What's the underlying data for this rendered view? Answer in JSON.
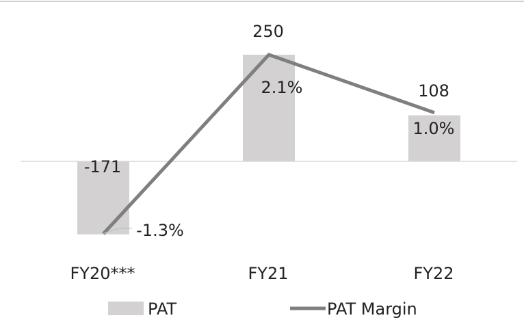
{
  "chart_data": {
    "type": "bar",
    "categories": [
      "FY20***",
      "FY21",
      "FY22"
    ],
    "series": [
      {
        "name": "PAT",
        "kind": "bar",
        "values": [
          -171,
          250,
          108
        ],
        "labels": [
          "-171",
          "250",
          "108"
        ],
        "color": "#d3d1d1"
      },
      {
        "name": "PAT Margin",
        "kind": "line",
        "values": [
          -1.3,
          2.1,
          1.0
        ],
        "labels": [
          "-1.3%",
          "2.1%",
          "1.0%"
        ],
        "color": "#7f7f7f"
      }
    ],
    "grid": false,
    "legend": "bottom"
  }
}
